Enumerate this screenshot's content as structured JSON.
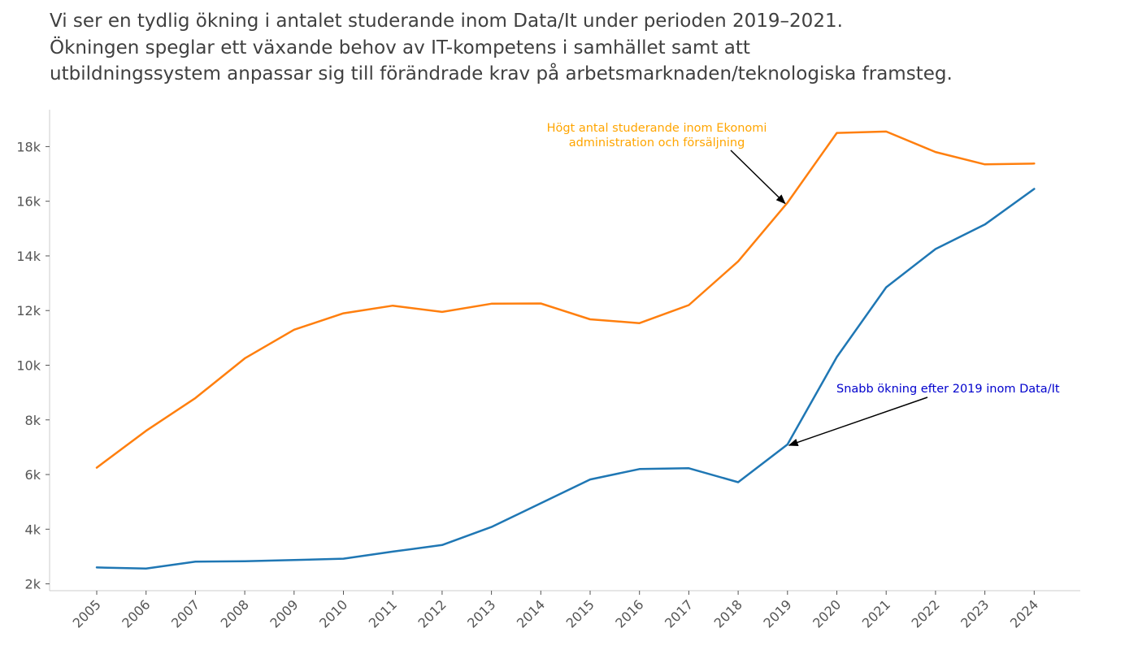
{
  "title": {
    "lines": [
      "Vi ser en tydlig ökning i antalet studerande inom Data/It under perioden 2019–2021.",
      "Ökningen speglar ett växande behov av IT-kompetens i samhället samt att",
      "utbildningssystem anpassar sig till förändrade krav på arbetsmarknaden/teknologiska framsteg."
    ]
  },
  "chart_data": {
    "type": "line",
    "categories": [
      "2005",
      "2006",
      "2007",
      "2008",
      "2009",
      "2010",
      "2011",
      "2012",
      "2013",
      "2014",
      "2015",
      "2016",
      "2017",
      "2018",
      "2019",
      "2020",
      "2021",
      "2022",
      "2023",
      "2024"
    ],
    "series": [
      {
        "color": "#ff7f0e",
        "values": [
          6250,
          7600,
          8800,
          10250,
          11300,
          11900,
          12180,
          11950,
          12250,
          12260,
          11680,
          11540,
          12200,
          13800,
          15950,
          18500,
          18550,
          17800,
          17350,
          17380
        ]
      },
      {
        "color": "#1f77b4",
        "values": [
          2600,
          2560,
          2810,
          2830,
          2870,
          2920,
          3180,
          3420,
          4080,
          4950,
          5820,
          6200,
          6230,
          5720,
          7100,
          10300,
          12850,
          14250,
          15150,
          16450
        ]
      }
    ],
    "ylim": [
      1750,
      19350
    ],
    "yticks": [
      2000,
      4000,
      6000,
      8000,
      10000,
      12000,
      14000,
      16000,
      18000
    ],
    "ytick_labels": [
      "2k",
      "4k",
      "6k",
      "8k",
      "10k",
      "12k",
      "14k",
      "16k",
      "18k"
    ],
    "grid": false,
    "legend": "none",
    "annotations": [
      {
        "lines": [
          "Högt antal studerande inom Ekonomi",
          "administration och försäljning"
        ],
        "color": "#ffa500",
        "x": "2019",
        "y": 15950
      },
      {
        "lines": [
          "Snabb ökning efter 2019 inom Data/It"
        ],
        "color": "#0000cd",
        "x": "2019",
        "y": 7100
      }
    ]
  }
}
